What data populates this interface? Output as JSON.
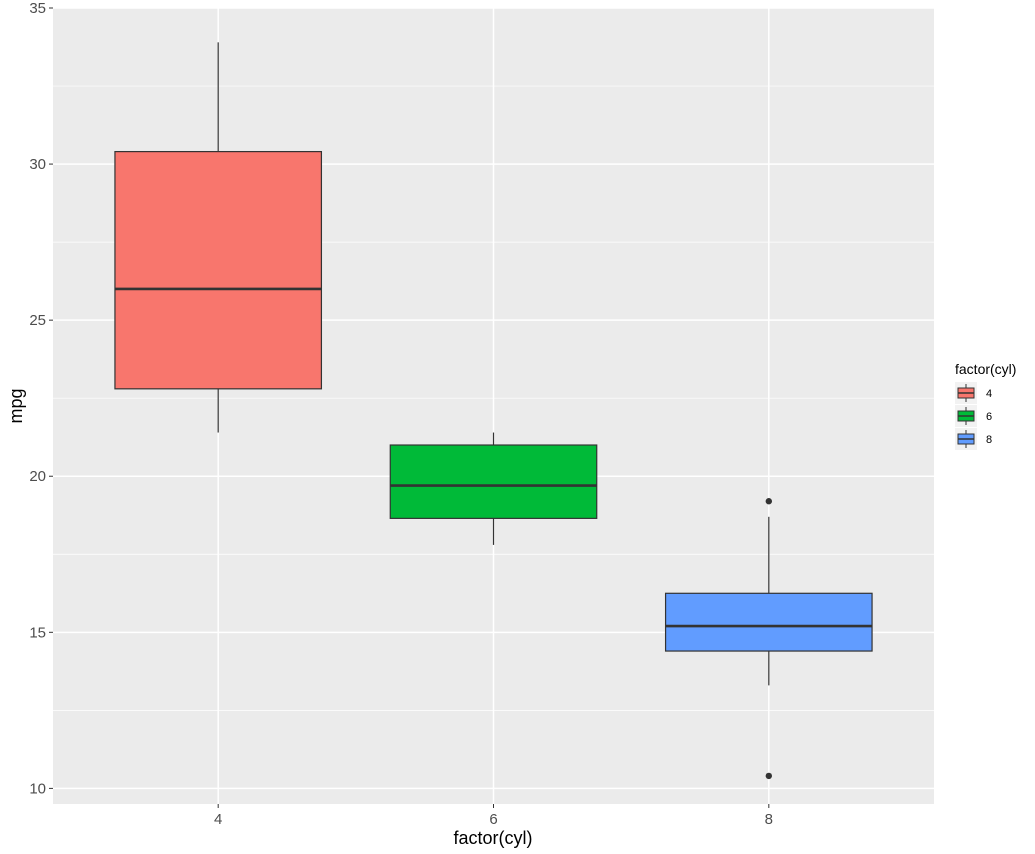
{
  "chart_data": {
    "type": "boxplot",
    "xlabel": "factor(cyl)",
    "ylabel": "mpg",
    "ylim": [
      9.5,
      35
    ],
    "yticks": [
      10,
      15,
      20,
      25,
      30,
      35
    ],
    "grid": true,
    "legend": {
      "title": "factor(cyl)",
      "position": "right",
      "entries": [
        {
          "label": "4",
          "color": "#F8766D"
        },
        {
          "label": "6",
          "color": "#00BA38"
        },
        {
          "label": "8",
          "color": "#619CFF"
        }
      ]
    },
    "categories": [
      "4",
      "6",
      "8"
    ],
    "boxes": [
      {
        "category": "4",
        "color": "#F8766D",
        "whisker_low": 21.4,
        "q1": 22.8,
        "median": 26.0,
        "q3": 30.4,
        "whisker_high": 33.9,
        "outliers": []
      },
      {
        "category": "6",
        "color": "#00BA38",
        "whisker_low": 17.8,
        "q1": 18.65,
        "median": 19.7,
        "q3": 21.0,
        "whisker_high": 21.4,
        "outliers": []
      },
      {
        "category": "8",
        "color": "#619CFF",
        "whisker_low": 13.3,
        "q1": 14.4,
        "median": 15.2,
        "q3": 16.25,
        "whisker_high": 18.7,
        "outliers": [
          10.4,
          19.2
        ]
      }
    ]
  }
}
